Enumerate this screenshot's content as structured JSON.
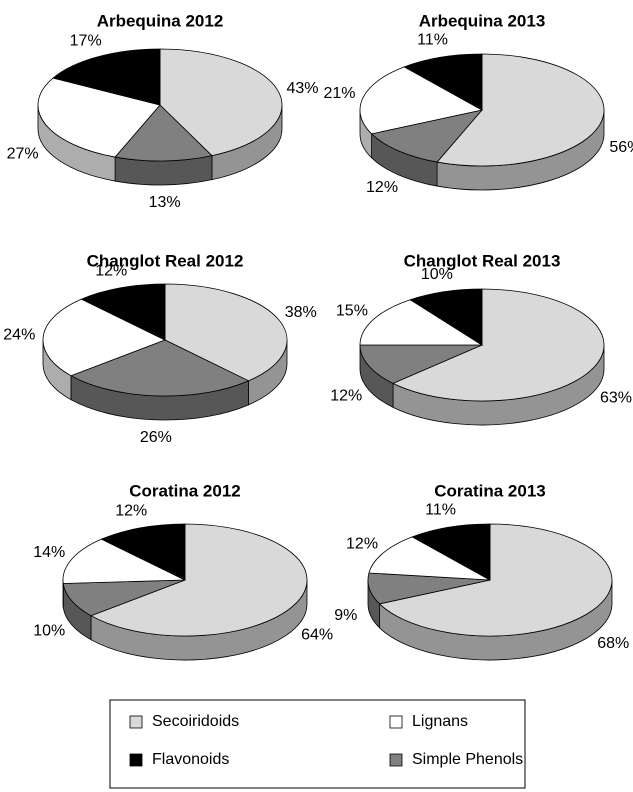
{
  "chart_data": [
    {
      "type": "pie",
      "title": "Arbequina 2012",
      "categories": [
        "Secoiridoids",
        "Lignans",
        "Flavonoids",
        "Simple Phenols"
      ],
      "values": [
        43,
        27,
        17,
        13
      ],
      "value_labels": [
        "43%",
        "27%",
        "17%",
        "13%"
      ],
      "colors": [
        "#d9d9d9",
        "#ffffff",
        "#000000",
        "#808080"
      ]
    },
    {
      "type": "pie",
      "title": "Arbequina 2013",
      "categories": [
        "Secoiridoids",
        "Lignans",
        "Flavonoids",
        "Simple Phenols"
      ],
      "values": [
        56,
        21,
        11,
        12
      ],
      "value_labels": [
        "56%",
        "21%",
        "11%",
        "12%"
      ],
      "colors": [
        "#d9d9d9",
        "#ffffff",
        "#000000",
        "#808080"
      ]
    },
    {
      "type": "pie",
      "title": "Changlot Real 2012",
      "categories": [
        "Secoiridoids",
        "Lignans",
        "Flavonoids",
        "Simple Phenols"
      ],
      "values": [
        38,
        24,
        12,
        26
      ],
      "value_labels": [
        "38%",
        "24%",
        "12%",
        "26%"
      ],
      "colors": [
        "#d9d9d9",
        "#ffffff",
        "#000000",
        "#808080"
      ]
    },
    {
      "type": "pie",
      "title": "Changlot Real 2013",
      "categories": [
        "Secoiridoids",
        "Lignans",
        "Flavonoids",
        "Simple Phenols"
      ],
      "values": [
        63,
        15,
        10,
        12
      ],
      "value_labels": [
        "63%",
        "15%",
        "10%",
        "12%"
      ],
      "colors": [
        "#d9d9d9",
        "#ffffff",
        "#000000",
        "#808080"
      ]
    },
    {
      "type": "pie",
      "title": "Coratina 2012",
      "categories": [
        "Secoiridoids",
        "Lignans",
        "Flavonoids",
        "Simple Phenols"
      ],
      "values": [
        64,
        14,
        12,
        10
      ],
      "value_labels": [
        "64%",
        "14%",
        "12%",
        "10%"
      ],
      "colors": [
        "#d9d9d9",
        "#ffffff",
        "#000000",
        "#808080"
      ]
    },
    {
      "type": "pie",
      "title": "Coratina 2013",
      "categories": [
        "Secoiridoids",
        "Lignans",
        "Flavonoids",
        "Simple Phenols"
      ],
      "values": [
        68,
        12,
        11,
        9
      ],
      "value_labels": [
        "68%",
        "12%",
        "11%",
        "9%"
      ],
      "colors": [
        "#d9d9d9",
        "#ffffff",
        "#000000",
        "#808080"
      ]
    }
  ]
}
